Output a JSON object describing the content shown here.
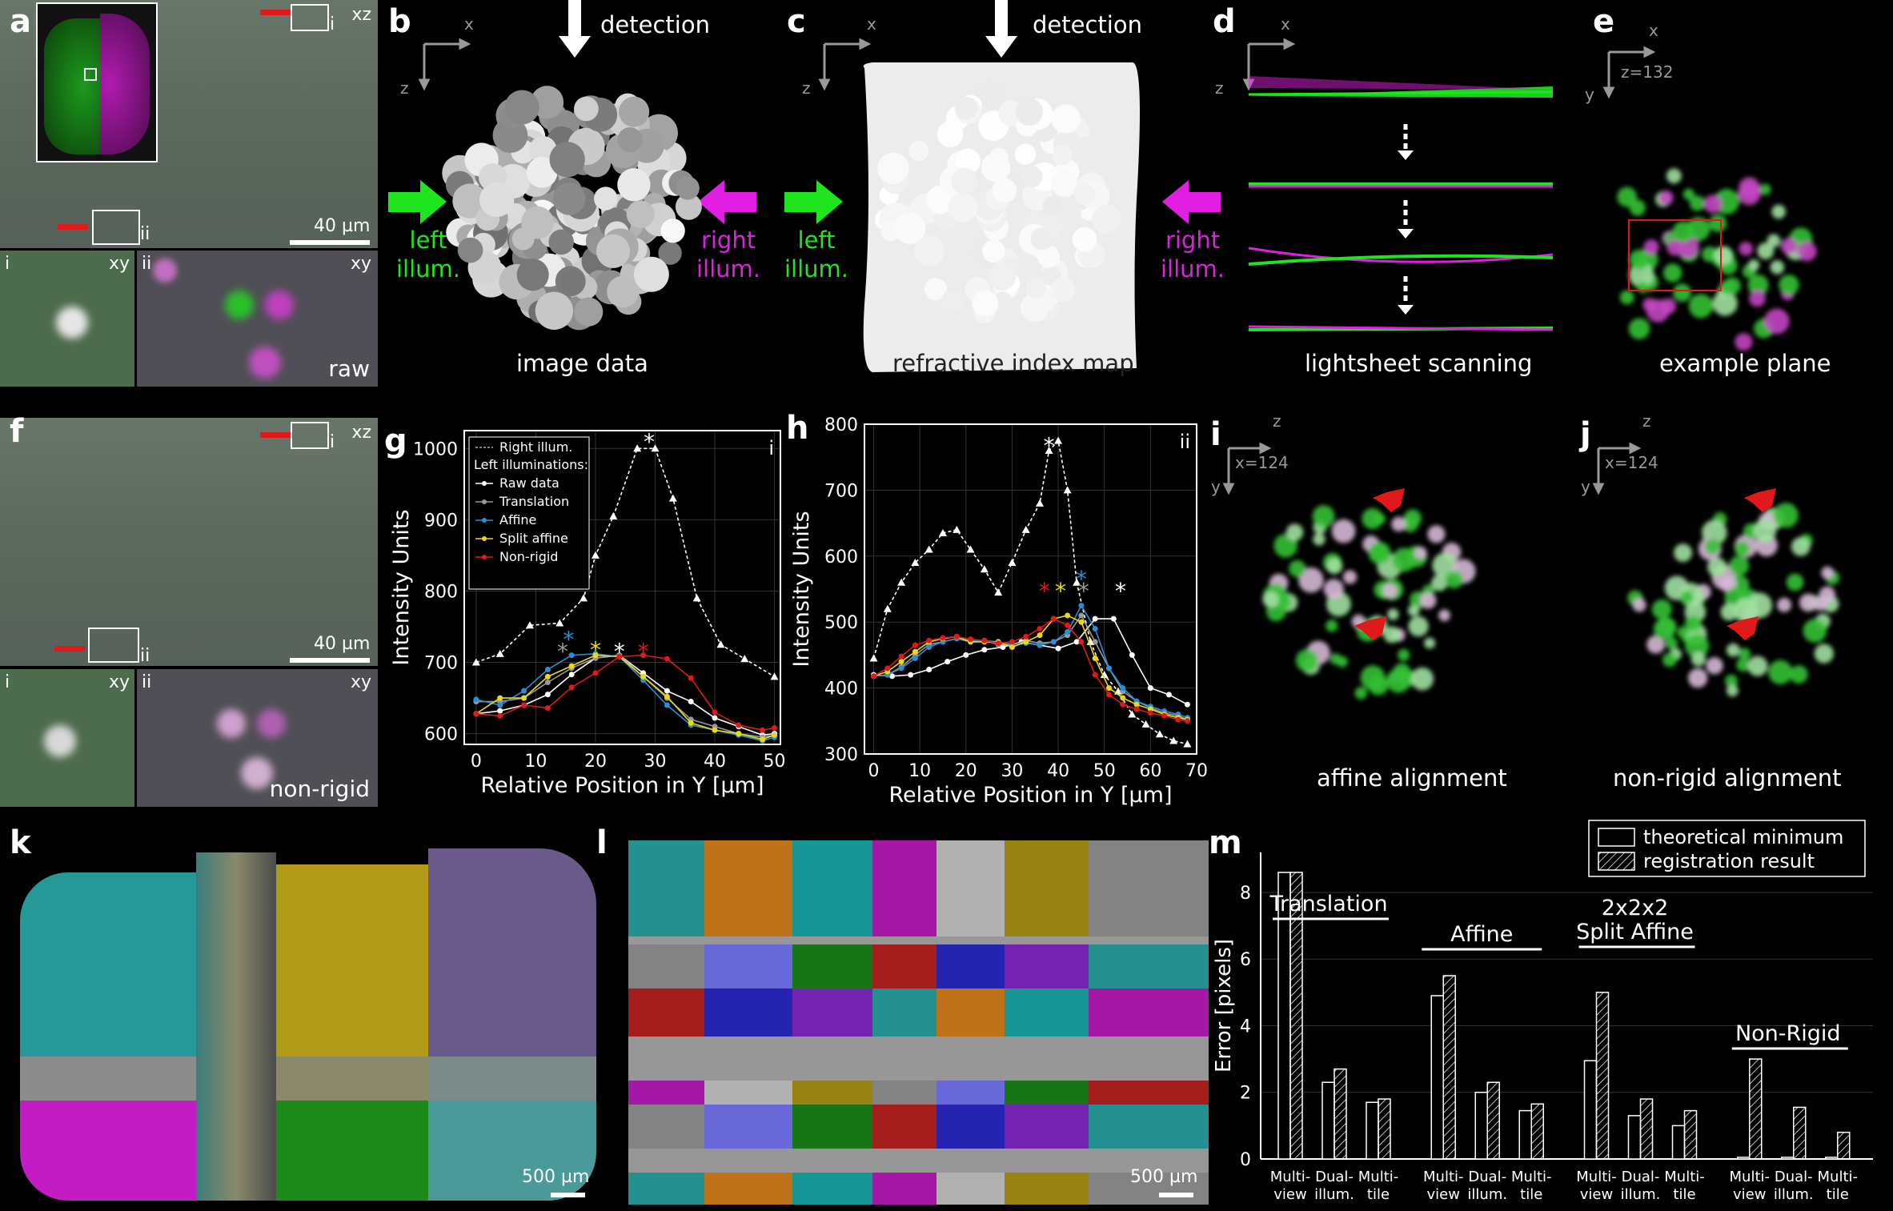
{
  "labels": {
    "a": "a",
    "b": "b",
    "c": "c",
    "d": "d",
    "e": "e",
    "f": "f",
    "g": "g",
    "h": "h",
    "i": "i",
    "j": "j",
    "k": "k",
    "l": "l",
    "m": "m"
  },
  "panel_a": {
    "plane": "xz",
    "sub_i": "i",
    "sub_ii": "ii",
    "xy": "xy",
    "scale": "40 µm",
    "tag": "raw"
  },
  "panel_f": {
    "plane": "xz",
    "sub_i": "i",
    "sub_ii": "ii",
    "xy": "xy",
    "scale": "40 µm",
    "tag": "non-rigid"
  },
  "panel_b": {
    "axis_x": "x",
    "axis_z": "z",
    "detection": "detection",
    "left": "left\nillum.",
    "right": "right\nillum.",
    "caption": "image data"
  },
  "panel_c": {
    "axis_x": "x",
    "axis_z": "z",
    "detection": "detection",
    "left": "left\nillum.",
    "right": "right\nillum.",
    "caption": "refractive index map"
  },
  "panel_d": {
    "axis_x": "x",
    "axis_z": "z",
    "caption": "lightsheet scanning"
  },
  "panel_e": {
    "axis_x": "x",
    "axis_y": "y",
    "zval": "z=132",
    "caption": "example plane"
  },
  "panel_i": {
    "axis_z": "z",
    "axis_y": "y",
    "xval": "x=124",
    "caption": "affine alignment"
  },
  "panel_j": {
    "axis_z": "z",
    "axis_y": "y",
    "xval": "x=124",
    "caption": "non-rigid alignment"
  },
  "panel_k": {
    "scale": "500 µm"
  },
  "panel_l": {
    "scale": "500 µm"
  },
  "colors": {
    "green": "#1fe51f",
    "magenta": "#e21ee2",
    "red": "#e0191a",
    "blue": "#2a8fd1",
    "yellow": "#e8d91a",
    "gray": "#888888"
  },
  "chart_data": [
    {
      "type": "line",
      "panel": "g",
      "corner_tag": "i",
      "xlabel": "Relative Position in Y [µm]",
      "ylabel": "Intensity Units",
      "xlim": [
        -2,
        51
      ],
      "ylim": [
        585,
        1025
      ],
      "xticks": [
        0,
        10,
        20,
        30,
        40,
        50
      ],
      "yticks": [
        600,
        700,
        800,
        900,
        1000
      ],
      "grid": true,
      "legend": {
        "placement": "top-left",
        "header": "Left illuminations:"
      },
      "series": [
        {
          "name": "Right illum.",
          "color": "#ffffff",
          "dashed": true,
          "marker": "triangle",
          "x": [
            0,
            4,
            9,
            14,
            18,
            20,
            23,
            27,
            30,
            33,
            37,
            41,
            45,
            50
          ],
          "y": [
            700,
            712,
            752,
            755,
            790,
            850,
            905,
            1000,
            1000,
            930,
            790,
            725,
            705,
            680
          ]
        },
        {
          "name": "Raw data",
          "color": "#ffffff",
          "marker": "dot",
          "x": [
            0,
            4,
            8,
            12,
            16,
            20,
            24,
            28,
            32,
            36,
            40,
            44,
            48,
            50
          ],
          "y": [
            628,
            632,
            640,
            655,
            683,
            706,
            710,
            685,
            660,
            645,
            622,
            610,
            598,
            600
          ]
        },
        {
          "name": "Translation",
          "color": "#999999",
          "marker": "dot",
          "x": [
            0,
            4,
            8,
            12,
            16,
            20,
            24,
            28,
            32,
            36,
            40,
            44,
            48,
            50
          ],
          "y": [
            645,
            645,
            650,
            672,
            692,
            706,
            710,
            680,
            650,
            620,
            610,
            600,
            595,
            598
          ]
        },
        {
          "name": "Affine",
          "color": "#2a8fd1",
          "marker": "dot",
          "x": [
            0,
            4,
            8,
            12,
            16,
            20,
            24,
            28,
            32,
            36,
            40,
            44,
            48,
            50
          ],
          "y": [
            648,
            640,
            660,
            690,
            710,
            712,
            708,
            675,
            640,
            612,
            605,
            598,
            590,
            595
          ]
        },
        {
          "name": "Split affine",
          "color": "#e8d91a",
          "marker": "dot",
          "x": [
            0,
            4,
            8,
            12,
            16,
            20,
            24,
            28,
            32,
            36,
            40,
            44,
            48,
            50
          ],
          "y": [
            628,
            650,
            650,
            680,
            695,
            710,
            708,
            680,
            652,
            615,
            605,
            600,
            592,
            598
          ]
        },
        {
          "name": "Non-rigid",
          "color": "#e0191a",
          "marker": "dot",
          "x": [
            0,
            4,
            8,
            12,
            16,
            20,
            24,
            28,
            32,
            36,
            40,
            44,
            48,
            50
          ],
          "y": [
            628,
            625,
            640,
            636,
            665,
            685,
            708,
            710,
            705,
            678,
            630,
            612,
            605,
            608
          ]
        }
      ],
      "annotations": [
        {
          "text": "*",
          "color": "#ffffff",
          "x": 29,
          "y": 1012
        },
        {
          "text": "*",
          "color": "#999999",
          "x": 14.5,
          "y": 718
        },
        {
          "text": "*",
          "color": "#2a8fd1",
          "x": 15.5,
          "y": 735
        },
        {
          "text": "*",
          "color": "#e8d91a",
          "x": 20,
          "y": 720
        },
        {
          "text": "*",
          "color": "#ffffff",
          "x": 24,
          "y": 718
        },
        {
          "text": "*",
          "color": "#e0191a",
          "x": 28,
          "y": 718
        }
      ]
    },
    {
      "type": "line",
      "panel": "h",
      "corner_tag": "ii",
      "xlabel": "Relative Position in Y [µm]",
      "ylabel": "Intensity Units",
      "xlim": [
        -2,
        70
      ],
      "ylim": [
        300,
        800
      ],
      "xticks": [
        0,
        10,
        20,
        30,
        40,
        50,
        60,
        70
      ],
      "yticks": [
        300,
        400,
        500,
        600,
        700,
        800
      ],
      "grid": true,
      "series": [
        {
          "name": "Right illum.",
          "color": "#ffffff",
          "dashed": true,
          "marker": "triangle",
          "x": [
            0,
            3,
            6,
            9,
            12,
            15,
            18,
            21,
            24,
            27,
            30,
            33,
            36,
            38,
            40,
            42,
            44,
            47,
            50,
            53,
            56,
            59,
            62,
            65,
            68
          ],
          "y": [
            445,
            520,
            560,
            590,
            610,
            635,
            640,
            610,
            580,
            545,
            590,
            640,
            680,
            760,
            775,
            700,
            560,
            470,
            420,
            395,
            360,
            345,
            330,
            320,
            315
          ]
        },
        {
          "name": "Raw data",
          "color": "#ffffff",
          "marker": "dot",
          "x": [
            0,
            4,
            8,
            12,
            16,
            20,
            24,
            28,
            32,
            36,
            40,
            44,
            48,
            52,
            56,
            60,
            64,
            68
          ],
          "y": [
            420,
            418,
            420,
            428,
            440,
            450,
            458,
            462,
            470,
            465,
            460,
            470,
            505,
            505,
            450,
            400,
            390,
            375
          ]
        },
        {
          "name": "Translation",
          "color": "#999999",
          "marker": "dot",
          "x": [
            0,
            3,
            6,
            9,
            12,
            15,
            18,
            21,
            24,
            27,
            30,
            33,
            36,
            39,
            42,
            45,
            48,
            51,
            54,
            57,
            60,
            63,
            66,
            68
          ],
          "y": [
            418,
            420,
            432,
            450,
            466,
            470,
            475,
            470,
            472,
            466,
            465,
            472,
            468,
            470,
            480,
            510,
            470,
            430,
            395,
            380,
            370,
            362,
            358,
            352
          ]
        },
        {
          "name": "Affine",
          "color": "#2a8fd1",
          "marker": "dot",
          "x": [
            0,
            3,
            6,
            9,
            12,
            15,
            18,
            21,
            24,
            27,
            30,
            33,
            36,
            39,
            42,
            45,
            48,
            51,
            54,
            57,
            60,
            63,
            66,
            68
          ],
          "y": [
            418,
            420,
            430,
            445,
            462,
            470,
            475,
            472,
            472,
            470,
            466,
            468,
            465,
            470,
            485,
            525,
            490,
            430,
            400,
            380,
            372,
            365,
            360,
            355
          ]
        },
        {
          "name": "Split affine",
          "color": "#e8d91a",
          "marker": "dot",
          "x": [
            0,
            3,
            6,
            9,
            12,
            15,
            18,
            21,
            24,
            27,
            30,
            33,
            36,
            39,
            42,
            45,
            48,
            51,
            54,
            57,
            60,
            63,
            66,
            68
          ],
          "y": [
            418,
            425,
            440,
            455,
            470,
            475,
            478,
            470,
            470,
            470,
            462,
            470,
            480,
            505,
            510,
            500,
            445,
            400,
            385,
            375,
            368,
            360,
            355,
            352
          ]
        },
        {
          "name": "Non-rigid",
          "color": "#e0191a",
          "marker": "dot",
          "x": [
            0,
            3,
            6,
            9,
            12,
            15,
            18,
            21,
            24,
            27,
            30,
            33,
            36,
            39,
            42,
            45,
            48,
            51,
            54,
            57,
            60,
            63,
            66,
            68
          ],
          "y": [
            418,
            430,
            448,
            465,
            472,
            476,
            478,
            474,
            472,
            468,
            470,
            478,
            490,
            505,
            495,
            470,
            420,
            390,
            375,
            368,
            362,
            358,
            352,
            350
          ]
        }
      ],
      "annotations": [
        {
          "text": "*",
          "color": "#ffffff",
          "x": 38,
          "y": 770
        },
        {
          "text": "*",
          "color": "#e0191a",
          "x": 37,
          "y": 550
        },
        {
          "text": "*",
          "color": "#e8d91a",
          "x": 40.5,
          "y": 550
        },
        {
          "text": "*",
          "color": "#2a8fd1",
          "x": 45,
          "y": 568
        },
        {
          "text": "*",
          "color": "#999999",
          "x": 45.5,
          "y": 550
        },
        {
          "text": "*",
          "color": "#ffffff",
          "x": 53.5,
          "y": 550
        }
      ]
    },
    {
      "type": "bar",
      "panel": "m",
      "ylabel": "Error [pixels]",
      "ylim": [
        0,
        9.2
      ],
      "yticks": [
        0,
        2,
        4,
        6,
        8
      ],
      "grid": true,
      "legend": {
        "placement": "top-right",
        "entries": [
          "theoretical minimum",
          "registration result"
        ]
      },
      "groups": [
        {
          "name": "Translation",
          "categories": [
            "Multi-\nview",
            "Dual-\nillum.",
            "Multi-\ntile"
          ],
          "theoretical": [
            8.6,
            2.3,
            1.7
          ],
          "result": [
            8.6,
            2.7,
            1.8
          ]
        },
        {
          "name": "Affine",
          "categories": [
            "Multi-\nview",
            "Dual-\nillum.",
            "Multi-\ntile"
          ],
          "theoretical": [
            4.9,
            2.0,
            1.45
          ],
          "result": [
            5.5,
            2.3,
            1.65
          ]
        },
        {
          "name": "2x2x2\nSplit Affine",
          "categories": [
            "Multi-\nview",
            "Dual-\nillum.",
            "Multi-\ntile"
          ],
          "theoretical": [
            2.95,
            1.3,
            1.0
          ],
          "result": [
            5.0,
            1.8,
            1.45
          ]
        },
        {
          "name": "Non-Rigid",
          "categories": [
            "Multi-\nview",
            "Dual-\nillum.",
            "Multi-\ntile"
          ],
          "theoretical": [
            0.05,
            0.05,
            0.05
          ],
          "result": [
            3.0,
            1.55,
            0.8
          ]
        }
      ]
    }
  ]
}
